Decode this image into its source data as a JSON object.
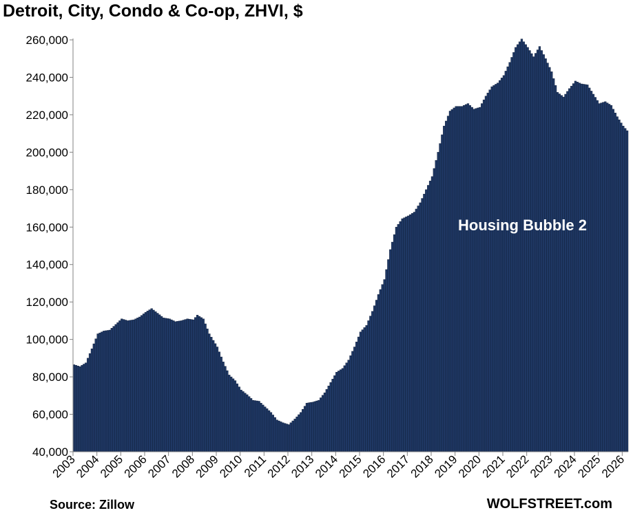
{
  "chart_data": {
    "type": "bar",
    "title": "Detroit, City, Condo & Co-op,  ZHVI, $",
    "xlabel": "",
    "ylabel": "",
    "ylim": [
      40000,
      260000
    ],
    "y_ticks": [
      "260,000",
      "240,000",
      "220,000",
      "200,000",
      "180,000",
      "160,000",
      "140,000",
      "120,000",
      "100,000",
      "80,000",
      "60,000",
      "40,000"
    ],
    "x_ticks": [
      "2003",
      "2004",
      "2005",
      "2006",
      "2007",
      "2008",
      "2009",
      "2010",
      "2011",
      "2012",
      "2013",
      "2014",
      "2015",
      "2016",
      "2017",
      "2018",
      "2019",
      "2020",
      "2021",
      "2022",
      "2023",
      "2024",
      "2025",
      "2026"
    ],
    "frequency": "monthly",
    "start": "2003-01",
    "end": "2026-03",
    "bar_color": "#1f3864",
    "anchors": [
      [
        "2003-01",
        86500
      ],
      [
        "2003-04",
        85500
      ],
      [
        "2003-07",
        87500
      ],
      [
        "2003-10",
        95000
      ],
      [
        "2004-01",
        103000
      ],
      [
        "2004-04",
        104500
      ],
      [
        "2004-07",
        105000
      ],
      [
        "2004-10",
        108000
      ],
      [
        "2005-01",
        111000
      ],
      [
        "2005-04",
        110000
      ],
      [
        "2005-07",
        110500
      ],
      [
        "2005-10",
        112000
      ],
      [
        "2006-01",
        114500
      ],
      [
        "2006-04",
        116500
      ],
      [
        "2006-07",
        114000
      ],
      [
        "2006-10",
        111500
      ],
      [
        "2007-01",
        111000
      ],
      [
        "2007-04",
        109500
      ],
      [
        "2007-07",
        110000
      ],
      [
        "2007-10",
        111000
      ],
      [
        "2008-01",
        110500
      ],
      [
        "2008-03",
        113000
      ],
      [
        "2008-06",
        111000
      ],
      [
        "2008-09",
        103000
      ],
      [
        "2009-01",
        96000
      ],
      [
        "2009-04",
        88000
      ],
      [
        "2009-07",
        81000
      ],
      [
        "2009-10",
        78000
      ],
      [
        "2010-01",
        73000
      ],
      [
        "2010-04",
        70500
      ],
      [
        "2010-07",
        67500
      ],
      [
        "2010-10",
        67000
      ],
      [
        "2011-01",
        64000
      ],
      [
        "2011-04",
        61000
      ],
      [
        "2011-07",
        57000
      ],
      [
        "2011-10",
        55500
      ],
      [
        "2012-01",
        54500
      ],
      [
        "2012-04",
        57500
      ],
      [
        "2012-07",
        61000
      ],
      [
        "2012-10",
        66000
      ],
      [
        "2013-01",
        66500
      ],
      [
        "2013-04",
        67500
      ],
      [
        "2013-07",
        71500
      ],
      [
        "2013-10",
        77000
      ],
      [
        "2014-01",
        82500
      ],
      [
        "2014-04",
        84500
      ],
      [
        "2014-07",
        89000
      ],
      [
        "2014-10",
        96000
      ],
      [
        "2015-01",
        104000
      ],
      [
        "2015-04",
        107500
      ],
      [
        "2015-07",
        115000
      ],
      [
        "2015-10",
        124000
      ],
      [
        "2016-01",
        132000
      ],
      [
        "2016-04",
        148000
      ],
      [
        "2016-07",
        160000
      ],
      [
        "2016-10",
        164500
      ],
      [
        "2017-01",
        166000
      ],
      [
        "2017-04",
        168000
      ],
      [
        "2017-07",
        173000
      ],
      [
        "2017-10",
        180000
      ],
      [
        "2018-01",
        187000
      ],
      [
        "2018-04",
        200000
      ],
      [
        "2018-07",
        214000
      ],
      [
        "2018-10",
        222000
      ],
      [
        "2019-01",
        224500
      ],
      [
        "2019-04",
        224500
      ],
      [
        "2019-07",
        226000
      ],
      [
        "2019-10",
        223000
      ],
      [
        "2020-01",
        224000
      ],
      [
        "2020-04",
        230000
      ],
      [
        "2020-07",
        235000
      ],
      [
        "2020-10",
        237000
      ],
      [
        "2021-01",
        241000
      ],
      [
        "2021-04",
        248000
      ],
      [
        "2021-07",
        256000
      ],
      [
        "2021-10",
        260500
      ],
      [
        "2022-01",
        256000
      ],
      [
        "2022-04",
        251000
      ],
      [
        "2022-07",
        256500
      ],
      [
        "2022-10",
        250000
      ],
      [
        "2023-01",
        243000
      ],
      [
        "2023-04",
        232000
      ],
      [
        "2023-07",
        229500
      ],
      [
        "2023-10",
        234000
      ],
      [
        "2024-01",
        238000
      ],
      [
        "2024-04",
        236500
      ],
      [
        "2024-07",
        236000
      ],
      [
        "2024-10",
        231000
      ],
      [
        "2025-01",
        226000
      ],
      [
        "2025-04",
        227000
      ],
      [
        "2025-07",
        225000
      ],
      [
        "2025-10",
        219000
      ],
      [
        "2026-01",
        214000
      ],
      [
        "2026-03",
        211500
      ]
    ],
    "annotations": [
      "Housing Bubble 2"
    ],
    "grid": false,
    "legend": "none"
  },
  "footer": {
    "source": "Source: Zillow",
    "brand": "WOLFSTREET.com"
  }
}
